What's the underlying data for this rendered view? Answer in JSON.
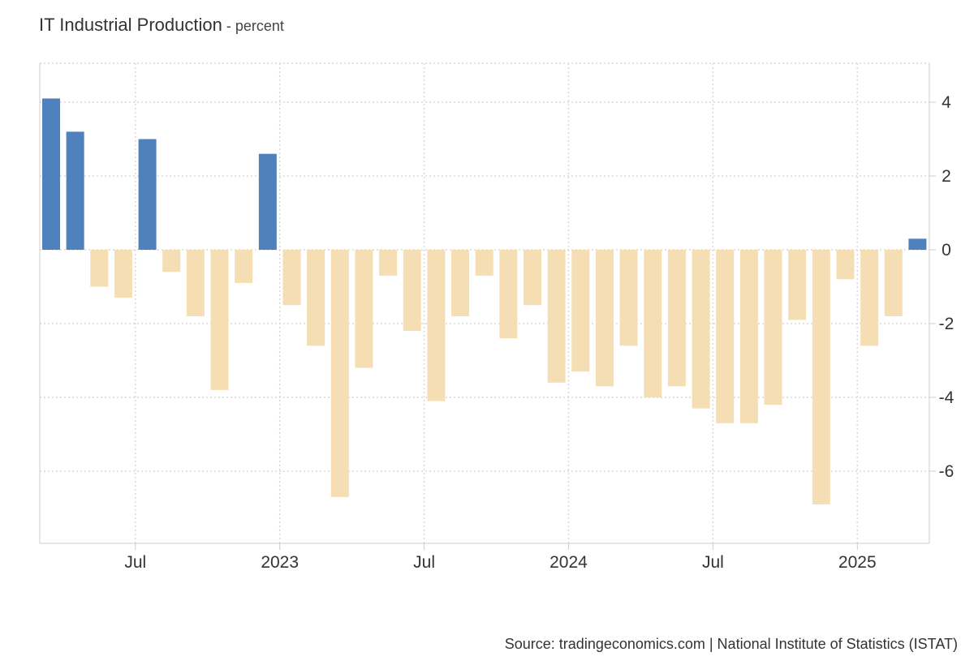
{
  "header": {
    "title": "IT Industrial Production",
    "unit": " - percent"
  },
  "footer": {
    "source": "Source: tradingeconomics.com | National Institute of Statistics (ISTAT)"
  },
  "colors": {
    "positive": "#4f81bd",
    "negative": "#f5deb3",
    "grid": "#d9d9d9",
    "axis": "#cccccc"
  },
  "chart_data": {
    "type": "bar",
    "title": "IT Industrial Production",
    "ylabel": "percent",
    "ylim": [
      -8,
      5
    ],
    "yticks": [
      4,
      2,
      0,
      -2,
      -4,
      -6
    ],
    "grid": true,
    "axis_position": "right",
    "x": [
      "2022-03",
      "2022-04",
      "2022-05",
      "2022-06",
      "2022-07",
      "2022-08",
      "2022-09",
      "2022-10",
      "2022-11",
      "2022-12",
      "2023-01",
      "2023-02",
      "2023-03",
      "2023-04",
      "2023-05",
      "2023-06",
      "2023-07",
      "2023-08",
      "2023-09",
      "2023-10",
      "2023-11",
      "2023-12",
      "2024-01",
      "2024-02",
      "2024-03",
      "2024-04",
      "2024-05",
      "2024-06",
      "2024-07",
      "2024-08",
      "2024-09",
      "2024-10",
      "2024-11",
      "2024-12",
      "2025-01",
      "2025-02",
      "2025-03"
    ],
    "values": [
      4.1,
      3.2,
      -1.0,
      -1.3,
      3.0,
      -0.6,
      -1.8,
      -3.8,
      -0.9,
      2.6,
      -1.5,
      -2.6,
      -6.7,
      -3.2,
      -0.7,
      -2.2,
      -4.1,
      -1.8,
      -0.7,
      -2.4,
      -1.5,
      -3.6,
      -3.3,
      -3.7,
      -2.6,
      -4.0,
      -3.7,
      -4.3,
      -4.7,
      -4.7,
      -4.2,
      -1.9,
      -6.9,
      -0.8,
      -2.6,
      -1.8,
      0.3
    ],
    "xticks": [
      {
        "x": "2022-07",
        "label": "Jul"
      },
      {
        "x": "2023-01",
        "label": "2023"
      },
      {
        "x": "2023-07",
        "label": "Jul"
      },
      {
        "x": "2024-01",
        "label": "2024"
      },
      {
        "x": "2024-07",
        "label": "Jul"
      },
      {
        "x": "2025-01",
        "label": "2025"
      }
    ]
  }
}
